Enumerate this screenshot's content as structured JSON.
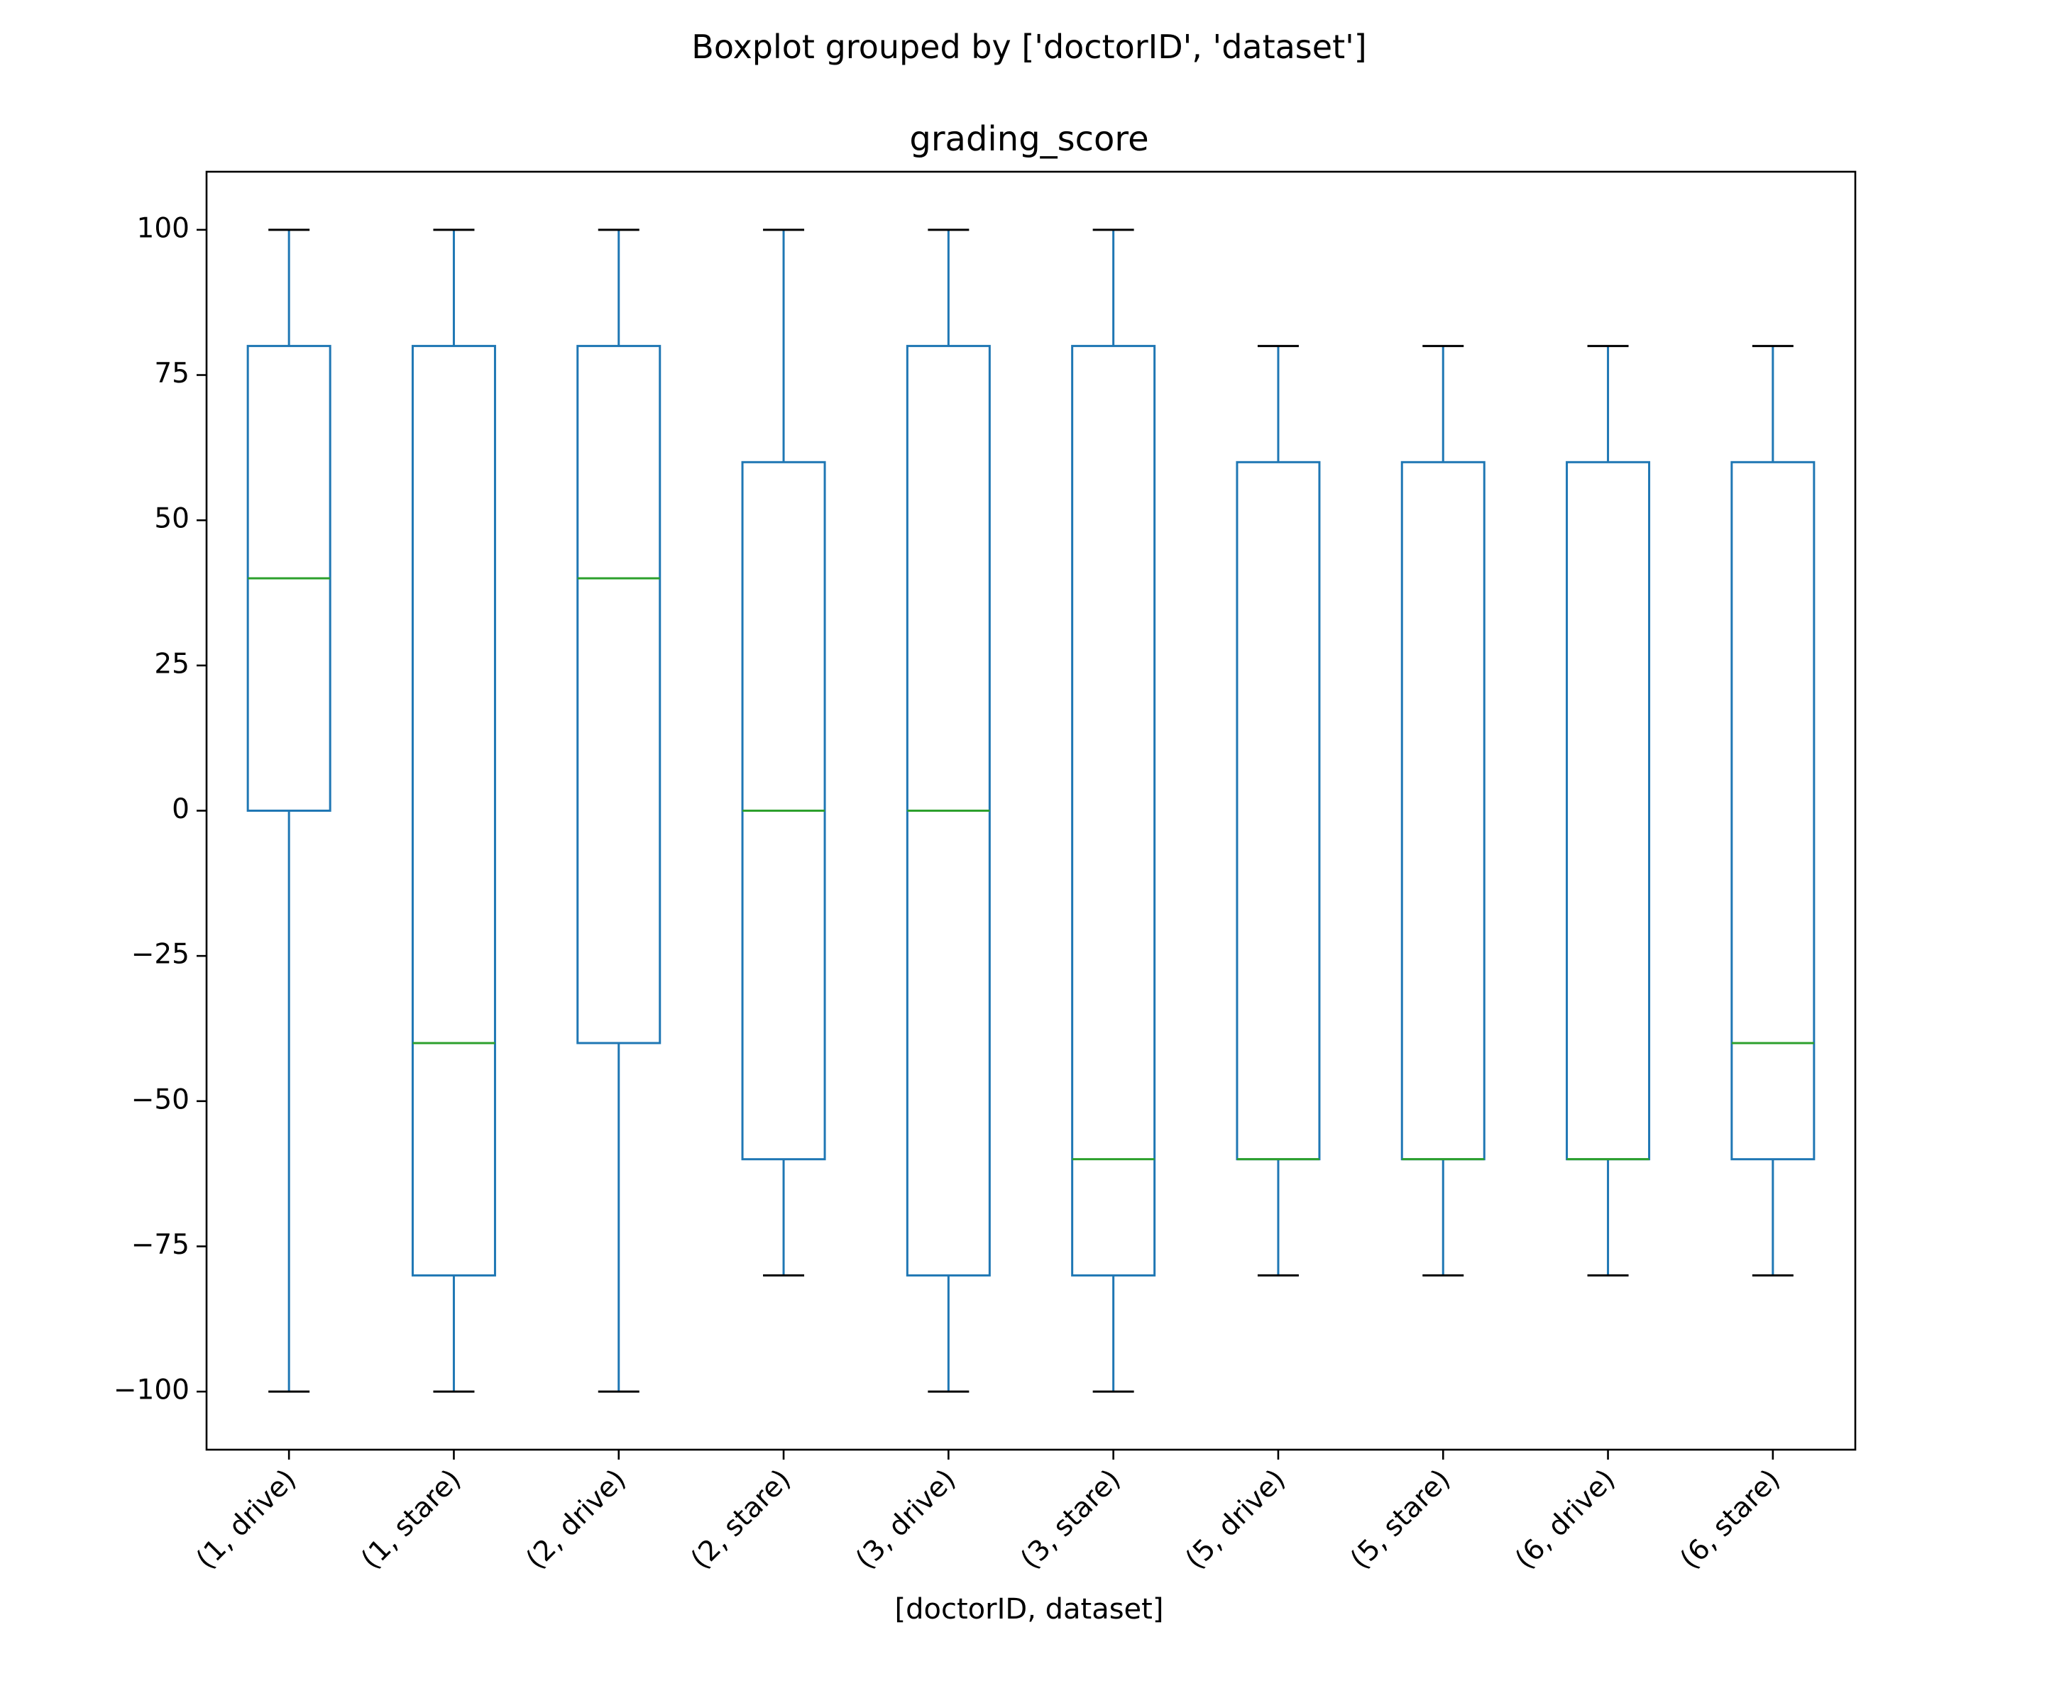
{
  "chart_data": {
    "type": "boxplot",
    "title": "Boxplot grouped by ['doctorID', 'dataset']",
    "subtitle": "grading_score",
    "xlabel": "[doctorID, dataset]",
    "ylabel": "",
    "ylim": [
      -110,
      110
    ],
    "yticks": [
      -100,
      -75,
      -50,
      -25,
      0,
      25,
      50,
      75,
      100
    ],
    "ytick_labels": [
      "−100",
      "−75",
      "−50",
      "−25",
      "0",
      "25",
      "50",
      "75",
      "100"
    ],
    "grid": false,
    "colors": {
      "box": "#1f77b4",
      "median": "#2ca02c",
      "cap": "#000000",
      "axes": "#000000"
    },
    "categories": [
      "(1, drive)",
      "(1, stare)",
      "(2, drive)",
      "(2, stare)",
      "(3, drive)",
      "(3, stare)",
      "(5, drive)",
      "(5, stare)",
      "(6, drive)",
      "(6, stare)"
    ],
    "boxes": [
      {
        "whislo": -100,
        "q1": 0,
        "med": 40,
        "q3": 80,
        "whishi": 100
      },
      {
        "whislo": -100,
        "q1": -80,
        "med": -40,
        "q3": 80,
        "whishi": 100
      },
      {
        "whislo": -100,
        "q1": -40,
        "med": 40,
        "q3": 80,
        "whishi": 100
      },
      {
        "whislo": -80,
        "q1": -60,
        "med": 0,
        "q3": 60,
        "whishi": 100
      },
      {
        "whislo": -100,
        "q1": -80,
        "med": 0,
        "q3": 80,
        "whishi": 100
      },
      {
        "whislo": -100,
        "q1": -80,
        "med": -60,
        "q3": 80,
        "whishi": 100
      },
      {
        "whislo": -80,
        "q1": -60,
        "med": -60,
        "q3": 60,
        "whishi": 80
      },
      {
        "whislo": -80,
        "q1": -60,
        "med": -60,
        "q3": 60,
        "whishi": 80
      },
      {
        "whislo": -80,
        "q1": -60,
        "med": -60,
        "q3": 60,
        "whishi": 80
      },
      {
        "whislo": -80,
        "q1": -60,
        "med": -40,
        "q3": 60,
        "whishi": 80
      }
    ]
  }
}
